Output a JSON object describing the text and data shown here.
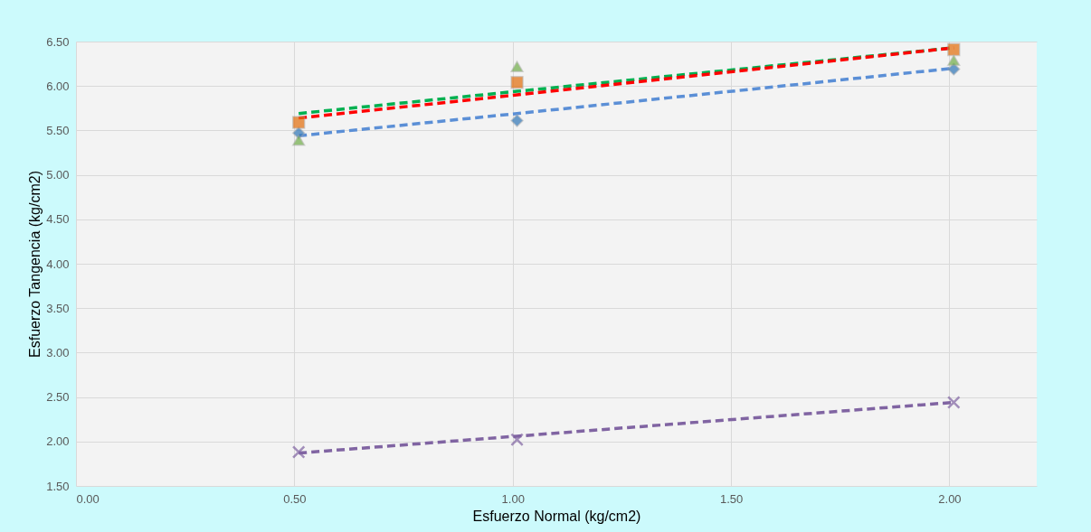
{
  "chart_data": {
    "type": "scatter",
    "xlabel": "Esfuerzo  Normal (kg/cm2)",
    "ylabel": "Esfuerzo Tangencia  (kg/cm2)",
    "x": [
      0.51,
      1.01,
      2.01
    ],
    "series": [
      {
        "type": "line",
        "values": [
          5.44,
          5.69,
          6.2
        ],
        "color": "#5b8fd6",
        "line_style": "dashed",
        "marker": "none"
      },
      {
        "type": "line",
        "values": [
          5.69,
          5.94,
          6.43
        ],
        "color": "#00b050",
        "line_style": "dashed",
        "marker": "none"
      },
      {
        "type": "line",
        "values": [
          5.64,
          5.9,
          6.43
        ],
        "color": "#ff0000",
        "line_style": "dashed",
        "marker": "none"
      },
      {
        "type": "line",
        "values": [
          1.87,
          2.06,
          2.44
        ],
        "color": "#8064a2",
        "line_style": "dashed",
        "marker": "none"
      },
      {
        "values": [
          5.47,
          5.61,
          6.19
        ],
        "color": "#2e75b6",
        "marker": "diamond"
      },
      {
        "values": [
          5.59,
          6.04,
          6.41
        ],
        "color": "#e36c09",
        "marker": "square"
      },
      {
        "values": [
          5.39,
          6.22,
          6.29
        ],
        "color": "#70ad47",
        "marker": "triangle"
      },
      {
        "values": [
          1.88,
          2.02,
          2.44
        ],
        "color": "#8064a2",
        "marker": "cross"
      }
    ],
    "xlim": [
      0,
      2.2
    ],
    "xticks": [
      {
        "value": 0,
        "label": "0.00"
      },
      {
        "value": 0.5,
        "label": "0.50"
      },
      {
        "value": 1,
        "label": "1.00"
      },
      {
        "value": 1.5,
        "label": "1.50"
      },
      {
        "value": 2,
        "label": "2.00"
      }
    ],
    "ylim": [
      1.5,
      6.5
    ],
    "yticks": [
      {
        "value": 1.5,
        "label": "1.50"
      },
      {
        "value": 2,
        "label": "2.00"
      },
      {
        "value": 2.5,
        "label": "2.50"
      },
      {
        "value": 3,
        "label": "3.00"
      },
      {
        "value": 3.5,
        "label": "3.50"
      },
      {
        "value": 4,
        "label": "4.00"
      },
      {
        "value": 4.5,
        "label": "4.50"
      },
      {
        "value": 5,
        "label": "5.00"
      },
      {
        "value": 5.5,
        "label": "5.50"
      },
      {
        "value": 6,
        "label": "6.00"
      },
      {
        "value": 6.5,
        "label": "6.50"
      }
    ],
    "grid": true
  }
}
